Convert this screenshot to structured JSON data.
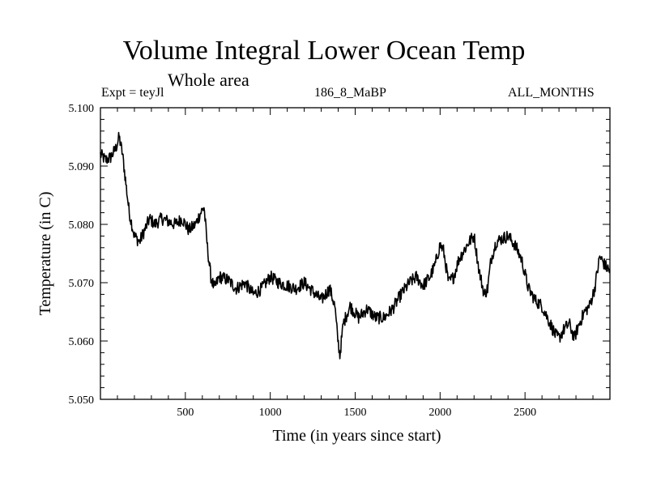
{
  "chart_data": {
    "type": "line",
    "title": "Volume Integral Lower Ocean Temp",
    "subtitle": "Whole area",
    "header_left": "Expt = teyJl",
    "header_center": "186_8_MaBP",
    "header_right": "ALL_MONTHS",
    "xlabel": "Time (in years since start)",
    "ylabel": "Temperature (in C)",
    "xlim": [
      0,
      3000
    ],
    "ylim": [
      5.05,
      5.1
    ],
    "x_ticks": [
      500,
      1000,
      1500,
      2000,
      2500
    ],
    "x_tick_labels": [
      "500",
      "1000",
      "1500",
      "2000",
      "2500"
    ],
    "y_ticks": [
      5.05,
      5.06,
      5.07,
      5.08,
      5.09,
      5.1
    ],
    "y_tick_labels": [
      "5.050",
      "5.060",
      "5.070",
      "5.080",
      "5.090",
      "5.100"
    ],
    "series": [
      {
        "name": "Volume Integral Lower Ocean Temp",
        "x": [
          0,
          30,
          60,
          90,
          110,
          130,
          150,
          170,
          200,
          230,
          260,
          290,
          320,
          360,
          400,
          440,
          480,
          520,
          560,
          590,
          610,
          630,
          650,
          670,
          700,
          750,
          800,
          850,
          900,
          950,
          1000,
          1050,
          1100,
          1150,
          1200,
          1250,
          1300,
          1350,
          1380,
          1395,
          1410,
          1430,
          1470,
          1520,
          1570,
          1620,
          1670,
          1720,
          1770,
          1820,
          1860,
          1900,
          1940,
          1970,
          2000,
          2020,
          2050,
          2080,
          2110,
          2140,
          2170,
          2200,
          2230,
          2260,
          2280,
          2300,
          2330,
          2360,
          2400,
          2440,
          2480,
          2520,
          2560,
          2600,
          2640,
          2680,
          2700,
          2730,
          2760,
          2790,
          2820,
          2850,
          2880,
          2910,
          2940,
          2970,
          3000
        ],
        "values": [
          5.092,
          5.091,
          5.0915,
          5.093,
          5.095,
          5.092,
          5.087,
          5.082,
          5.078,
          5.077,
          5.079,
          5.081,
          5.08,
          5.081,
          5.0805,
          5.08,
          5.081,
          5.079,
          5.08,
          5.082,
          5.083,
          5.076,
          5.071,
          5.069,
          5.071,
          5.0705,
          5.069,
          5.07,
          5.068,
          5.069,
          5.071,
          5.07,
          5.0695,
          5.069,
          5.07,
          5.0685,
          5.067,
          5.069,
          5.066,
          5.061,
          5.0575,
          5.063,
          5.066,
          5.064,
          5.0655,
          5.064,
          5.064,
          5.0655,
          5.068,
          5.07,
          5.071,
          5.0695,
          5.071,
          5.073,
          5.0765,
          5.0755,
          5.07,
          5.071,
          5.074,
          5.0755,
          5.077,
          5.078,
          5.072,
          5.068,
          5.069,
          5.074,
          5.077,
          5.0775,
          5.078,
          5.0765,
          5.074,
          5.069,
          5.067,
          5.066,
          5.0635,
          5.061,
          5.0605,
          5.062,
          5.063,
          5.0605,
          5.063,
          5.065,
          5.066,
          5.069,
          5.0745,
          5.073,
          5.072
        ]
      }
    ]
  }
}
